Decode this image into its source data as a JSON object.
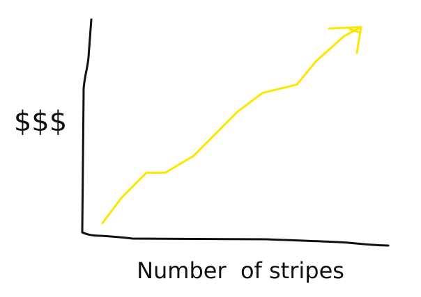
{
  "chart_data": {
    "type": "line",
    "title": "",
    "xlabel": "Number  of stripes",
    "ylabel": "$$$",
    "xlim": [
      0,
      100
    ],
    "ylim": [
      0,
      100
    ],
    "grid": false,
    "legend": "none",
    "series": [
      {
        "color": "#ffe600",
        "points": [
          [
            6,
            5
          ],
          [
            12,
            17
          ],
          [
            20,
            29
          ],
          [
            26,
            29
          ],
          [
            35,
            37
          ],
          [
            49,
            58
          ],
          [
            57,
            67
          ],
          [
            68,
            71
          ],
          [
            74,
            82
          ],
          [
            83,
            94
          ],
          [
            88,
            98
          ]
        ]
      }
    ],
    "annotations": [
      {
        "type": "arrowhead",
        "at_series_end": true
      }
    ],
    "colors": {
      "axis": "#111111",
      "line": "#ffe600"
    }
  }
}
